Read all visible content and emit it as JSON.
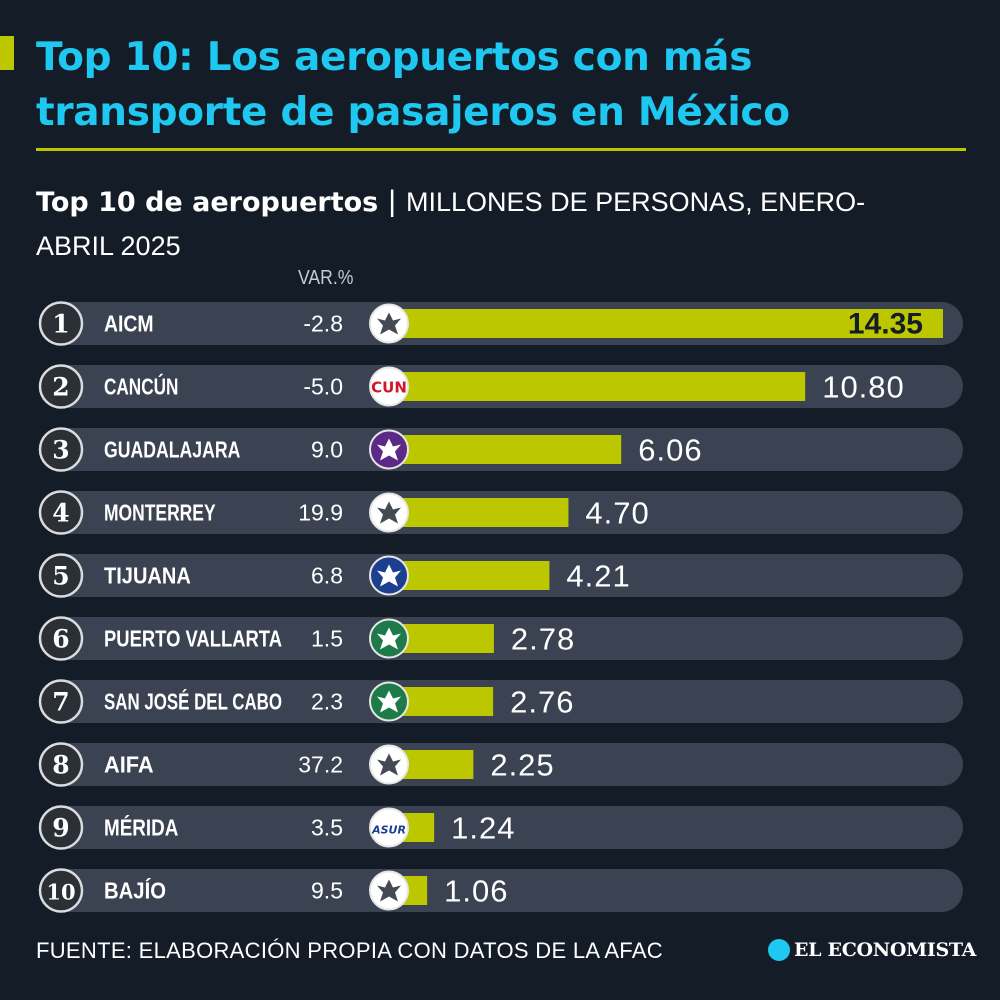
{
  "header": {
    "title": "Top 10: Los aeropuertos con más transporte de pasajeros en México",
    "subtitle_bold": "Top 10 de aeropuertos",
    "subtitle_separator": "|",
    "subtitle_unit": "MILLONES DE PERSONAS, ENERO-ABRIL 2025",
    "var_header": "VAR.%"
  },
  "footer": {
    "source": "FUENTE: ELABORACIÓN PROPIA CON DATOS DE LA AFAC",
    "brand": "EL ECONOMISTA"
  },
  "colors": {
    "background": "#141c27",
    "title": "#1ec8f0",
    "accent": "#bcc700",
    "row_track": "#3b4352",
    "bar": "#bcc700",
    "rank_circle": "#2b2f36",
    "brand_icon": "#1ec8f0"
  },
  "chart_data": {
    "type": "bar",
    "orientation": "horizontal",
    "title": "Top 10 de aeropuertos",
    "unit": "MILLONES DE PERSONAS, ENERO-ABRIL 2025",
    "xlim": [
      0,
      14.35
    ],
    "grid": false,
    "legend": "none",
    "ranks": [
      "1",
      "2",
      "3",
      "4",
      "5",
      "6",
      "7",
      "8",
      "9",
      "10"
    ],
    "categories": [
      "AICM",
      "CANCÚN",
      "GUADALAJARA",
      "MONTERREY",
      "TIJUANA",
      "PUERTO VALLARTA",
      "SAN JOSÉ DEL CABO",
      "AIFA",
      "MÉRIDA",
      "BAJÍO"
    ],
    "var_pct": [
      "-2.8",
      "-5.0",
      "9.0",
      "19.9",
      "6.8",
      "1.5",
      "2.3",
      "37.2",
      "3.5",
      "9.5"
    ],
    "values": [
      14.35,
      10.8,
      6.06,
      4.7,
      4.21,
      2.78,
      2.76,
      2.25,
      1.24,
      1.06
    ],
    "value_labels": [
      "14.35",
      "10.80",
      "6.06",
      "4.70",
      "4.21",
      "2.78",
      "2.76",
      "2.25",
      "1.24",
      "1.06"
    ],
    "logo_icons": [
      "aicm-logo-icon",
      "cancun-cun-logo-icon",
      "guadalajara-gap-logo-icon",
      "monterrey-oma-logo-icon",
      "tijuana-gap-logo-icon",
      "puerto-vallarta-gap-logo-icon",
      "san-jose-del-cabo-gap-logo-icon",
      "aifa-logo-icon",
      "merida-asur-logo-icon",
      "bajio-gap-logo-icon"
    ],
    "logo_texts": [
      "",
      "CUN",
      "",
      "",
      "",
      "",
      "",
      "",
      "ASUR",
      ""
    ],
    "logo_colors": [
      "#ffffff",
      "#ffffff",
      "#5b2a86",
      "#ffffff",
      "#1d3f8f",
      "#1f7a4a",
      "#1f7a4a",
      "#ffffff",
      "#ffffff",
      "#ffffff"
    ]
  }
}
